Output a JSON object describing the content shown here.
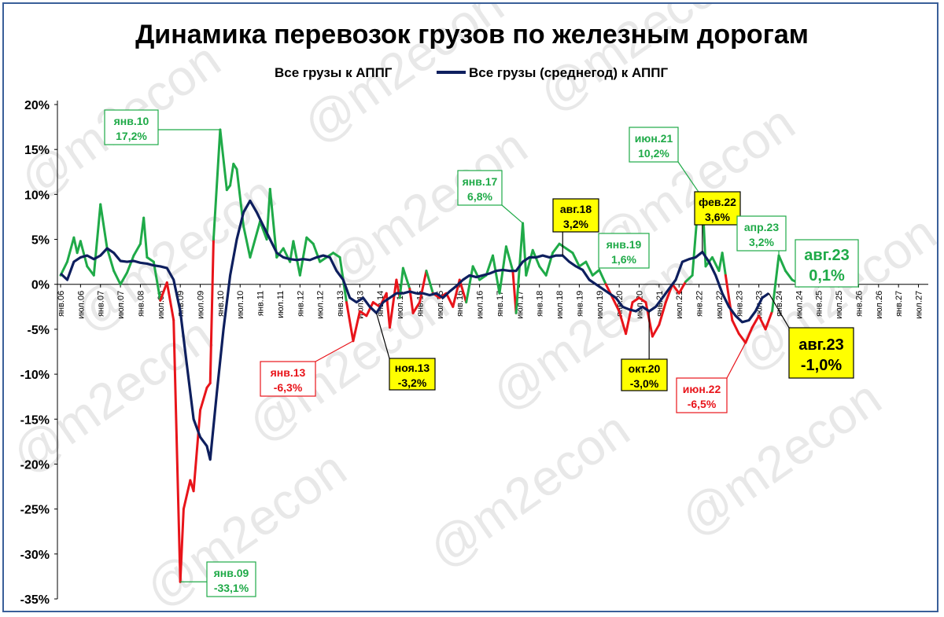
{
  "chart_data": {
    "type": "line",
    "title": "Динамика перевозок грузов по железным дорогам",
    "watermark": "@m2econ",
    "y_unit": "%",
    "ylim": [
      -35,
      20
    ],
    "yticks": [
      20,
      15,
      10,
      5,
      0,
      -5,
      -10,
      -15,
      -20,
      -25,
      -30,
      -35
    ],
    "ytick_labels": [
      "20%",
      "15%",
      "10%",
      "5%",
      "0%",
      "-5%",
      "-10%",
      "-15%",
      "-20%",
      "-25%",
      "-30%",
      "-35%"
    ],
    "x_start": "2006-01",
    "x_end": "2027-09",
    "xtick_labels": [
      "янв.06",
      "июл.06",
      "янв.07",
      "июл.07",
      "янв.08",
      "июл.08",
      "янв.09",
      "июл.09",
      "янв.10",
      "июл.10",
      "янв.11",
      "июл.11",
      "янв.12",
      "июл.12",
      "янв.13",
      "июл.13",
      "янв.14",
      "июл.14",
      "янв.15",
      "июл.15",
      "янв.16",
      "июл.16",
      "янв.17",
      "июл.17",
      "янв.18",
      "июл.18",
      "янв.19",
      "июл.19",
      "янв.20",
      "июл.20",
      "янв.21",
      "июл.21",
      "янв.22",
      "июл.22",
      "янв.23",
      "июл.23",
      "янв.24",
      "июл.24",
      "янв.25",
      "июл.25",
      "янв.26",
      "июл.26",
      "янв.27",
      "июл.27"
    ],
    "grid": false,
    "legend_position": "top-center",
    "colors": {
      "positive": "#1faa48",
      "negative": "#e8141a",
      "average": "#0e1f5e"
    },
    "series": [
      {
        "name": "Все грузы к АППГ",
        "style": "red-green",
        "points": [
          [
            "2006-01",
            1.0
          ],
          [
            "2006-03",
            2.5
          ],
          [
            "2006-05",
            5.2
          ],
          [
            "2006-06",
            3.5
          ],
          [
            "2006-07",
            4.8
          ],
          [
            "2006-09",
            2.0
          ],
          [
            "2006-11",
            1.0
          ],
          [
            "2007-01",
            8.9
          ],
          [
            "2007-03",
            4.0
          ],
          [
            "2007-05",
            1.5
          ],
          [
            "2007-07",
            0.0
          ],
          [
            "2007-09",
            1.3
          ],
          [
            "2007-11",
            3.2
          ],
          [
            "2008-01",
            4.5
          ],
          [
            "2008-02",
            7.4
          ],
          [
            "2008-03",
            3.0
          ],
          [
            "2008-05",
            2.5
          ],
          [
            "2008-07",
            -1.8
          ],
          [
            "2008-09",
            0.2
          ],
          [
            "2008-11",
            -4.0
          ],
          [
            "2009-01",
            -33.1
          ],
          [
            "2009-02",
            -25.0
          ],
          [
            "2009-04",
            -21.8
          ],
          [
            "2009-05",
            -23.0
          ],
          [
            "2009-07",
            -14.0
          ],
          [
            "2009-09",
            -11.5
          ],
          [
            "2009-10",
            -11.0
          ],
          [
            "2009-11",
            5.0
          ],
          [
            "2010-01",
            17.2
          ],
          [
            "2010-03",
            10.5
          ],
          [
            "2010-04",
            11.0
          ],
          [
            "2010-05",
            13.4
          ],
          [
            "2010-06",
            12.8
          ],
          [
            "2010-08",
            6.5
          ],
          [
            "2010-10",
            3.0
          ],
          [
            "2011-01",
            7.0
          ],
          [
            "2011-03",
            5.0
          ],
          [
            "2011-04",
            10.6
          ],
          [
            "2011-06",
            3.0
          ],
          [
            "2011-08",
            4.0
          ],
          [
            "2011-10",
            2.5
          ],
          [
            "2011-11",
            4.8
          ],
          [
            "2012-01",
            1.0
          ],
          [
            "2012-03",
            5.2
          ],
          [
            "2012-05",
            4.5
          ],
          [
            "2012-07",
            2.5
          ],
          [
            "2012-09",
            3.0
          ],
          [
            "2012-11",
            3.5
          ],
          [
            "2013-01",
            3.0
          ],
          [
            "2013-03",
            -2.0
          ],
          [
            "2013-05",
            -6.3
          ],
          [
            "2013-07",
            -3.0
          ],
          [
            "2013-09",
            -3.5
          ],
          [
            "2013-11",
            -2.0
          ],
          [
            "2014-01",
            -2.5
          ],
          [
            "2014-03",
            -1.0
          ],
          [
            "2014-04",
            -4.8
          ],
          [
            "2014-06",
            0.5
          ],
          [
            "2014-07",
            -1.5
          ],
          [
            "2014-08",
            1.8
          ],
          [
            "2014-10",
            -0.5
          ],
          [
            "2014-11",
            -3.2
          ],
          [
            "2015-01",
            -2.0
          ],
          [
            "2015-03",
            1.5
          ],
          [
            "2015-05",
            -1.0
          ],
          [
            "2015-07",
            -1.5
          ],
          [
            "2015-09",
            -1.0
          ],
          [
            "2015-11",
            -2.5
          ],
          [
            "2016-01",
            0.5
          ],
          [
            "2016-03",
            -2.0
          ],
          [
            "2016-05",
            2.0
          ],
          [
            "2016-07",
            0.5
          ],
          [
            "2016-09",
            1.0
          ],
          [
            "2016-11",
            3.2
          ],
          [
            "2017-01",
            -1.0
          ],
          [
            "2017-03",
            4.2
          ],
          [
            "2017-05",
            1.5
          ],
          [
            "2017-06",
            -3.2
          ],
          [
            "2017-08",
            6.8
          ],
          [
            "2017-09",
            1.0
          ],
          [
            "2017-11",
            3.8
          ],
          [
            "2018-01",
            2.0
          ],
          [
            "2018-03",
            1.0
          ],
          [
            "2018-05",
            3.5
          ],
          [
            "2018-07",
            4.5
          ],
          [
            "2018-09",
            4.0
          ],
          [
            "2018-11",
            3.5
          ],
          [
            "2019-01",
            2.0
          ],
          [
            "2019-03",
            2.5
          ],
          [
            "2019-05",
            1.0
          ],
          [
            "2019-07",
            1.6
          ],
          [
            "2019-09",
            0.0
          ],
          [
            "2019-11",
            -1.5
          ],
          [
            "2020-01",
            -3.0
          ],
          [
            "2020-03",
            -5.5
          ],
          [
            "2020-05",
            -2.0
          ],
          [
            "2020-07",
            -1.5
          ],
          [
            "2020-09",
            -2.0
          ],
          [
            "2020-11",
            -5.8
          ],
          [
            "2021-01",
            -4.5
          ],
          [
            "2021-03",
            -2.0
          ],
          [
            "2021-05",
            0.0
          ],
          [
            "2021-07",
            -1.0
          ],
          [
            "2021-09",
            0.3
          ],
          [
            "2021-11",
            1.0
          ],
          [
            "2022-01",
            10.2
          ],
          [
            "2022-02",
            10.0
          ],
          [
            "2022-03",
            2.0
          ],
          [
            "2022-05",
            3.0
          ],
          [
            "2022-07",
            1.5
          ],
          [
            "2022-08",
            3.5
          ],
          [
            "2022-09",
            1.0
          ],
          [
            "2022-11",
            -4.0
          ],
          [
            "2023-01",
            -5.5
          ],
          [
            "2023-03",
            -6.5
          ],
          [
            "2023-05",
            -4.8
          ],
          [
            "2023-07",
            -3.5
          ],
          [
            "2023-09",
            -5.0
          ],
          [
            "2023-11",
            -3.0
          ],
          [
            "2024-01",
            3.2
          ],
          [
            "2024-03",
            1.5
          ],
          [
            "2024-05",
            0.5
          ],
          [
            "2024-07",
            0.1
          ]
        ]
      },
      {
        "name": "Все грузы (среднегод) к АППГ",
        "style": "navy",
        "points": [
          [
            "2006-01",
            1.2
          ],
          [
            "2006-03",
            0.5
          ],
          [
            "2006-05",
            2.5
          ],
          [
            "2006-07",
            3.0
          ],
          [
            "2006-09",
            3.2
          ],
          [
            "2006-11",
            2.8
          ],
          [
            "2007-01",
            3.2
          ],
          [
            "2007-03",
            4.0
          ],
          [
            "2007-05",
            3.5
          ],
          [
            "2007-07",
            2.6
          ],
          [
            "2007-09",
            2.5
          ],
          [
            "2007-11",
            2.6
          ],
          [
            "2008-01",
            2.4
          ],
          [
            "2008-03",
            2.3
          ],
          [
            "2008-05",
            2.1
          ],
          [
            "2008-07",
            2.0
          ],
          [
            "2008-09",
            1.8
          ],
          [
            "2008-11",
            0.5
          ],
          [
            "2009-01",
            -3.0
          ],
          [
            "2009-03",
            -9.0
          ],
          [
            "2009-05",
            -15.0
          ],
          [
            "2009-07",
            -17.0
          ],
          [
            "2009-09",
            -18.0
          ],
          [
            "2009-10",
            -19.5
          ],
          [
            "2009-12",
            -12.0
          ],
          [
            "2010-02",
            -5.0
          ],
          [
            "2010-04",
            1.0
          ],
          [
            "2010-06",
            5.0
          ],
          [
            "2010-08",
            8.0
          ],
          [
            "2010-10",
            9.3
          ],
          [
            "2010-12",
            8.0
          ],
          [
            "2011-02",
            6.5
          ],
          [
            "2011-04",
            5.0
          ],
          [
            "2011-06",
            3.5
          ],
          [
            "2011-08",
            3.0
          ],
          [
            "2011-10",
            2.8
          ],
          [
            "2011-12",
            2.7
          ],
          [
            "2012-02",
            2.8
          ],
          [
            "2012-04",
            2.7
          ],
          [
            "2012-06",
            3.0
          ],
          [
            "2012-08",
            3.2
          ],
          [
            "2012-10",
            3.0
          ],
          [
            "2012-12",
            1.5
          ],
          [
            "2013-02",
            0.5
          ],
          [
            "2013-04",
            -1.5
          ],
          [
            "2013-06",
            -2.0
          ],
          [
            "2013-08",
            -1.5
          ],
          [
            "2013-10",
            -2.5
          ],
          [
            "2013-12",
            -3.2
          ],
          [
            "2014-02",
            -2.0
          ],
          [
            "2014-04",
            -1.5
          ],
          [
            "2014-06",
            -1.0
          ],
          [
            "2014-08",
            -1.0
          ],
          [
            "2014-10",
            -0.8
          ],
          [
            "2014-12",
            -1.0
          ],
          [
            "2015-02",
            -1.0
          ],
          [
            "2015-04",
            -1.2
          ],
          [
            "2015-06",
            -1.0
          ],
          [
            "2015-08",
            -1.5
          ],
          [
            "2015-10",
            -0.8
          ],
          [
            "2015-12",
            -0.2
          ],
          [
            "2016-02",
            0.5
          ],
          [
            "2016-04",
            1.0
          ],
          [
            "2016-06",
            0.8
          ],
          [
            "2016-08",
            1.0
          ],
          [
            "2016-10",
            1.2
          ],
          [
            "2016-12",
            1.5
          ],
          [
            "2017-02",
            1.6
          ],
          [
            "2017-04",
            1.5
          ],
          [
            "2017-06",
            1.5
          ],
          [
            "2017-08",
            2.5
          ],
          [
            "2017-10",
            3.0
          ],
          [
            "2017-12",
            3.0
          ],
          [
            "2018-02",
            3.2
          ],
          [
            "2018-04",
            3.0
          ],
          [
            "2018-06",
            3.2
          ],
          [
            "2018-08",
            3.2
          ],
          [
            "2018-10",
            2.5
          ],
          [
            "2018-12",
            2.0
          ],
          [
            "2019-02",
            1.6
          ],
          [
            "2019-04",
            0.5
          ],
          [
            "2019-06",
            0.0
          ],
          [
            "2019-08",
            -0.5
          ],
          [
            "2019-10",
            -1.0
          ],
          [
            "2019-12",
            -1.5
          ],
          [
            "2020-02",
            -2.5
          ],
          [
            "2020-04",
            -2.8
          ],
          [
            "2020-06",
            -3.0
          ],
          [
            "2020-08",
            -2.5
          ],
          [
            "2020-10",
            -3.0
          ],
          [
            "2020-12",
            -2.5
          ],
          [
            "2021-02",
            -1.5
          ],
          [
            "2021-04",
            -0.5
          ],
          [
            "2021-06",
            0.5
          ],
          [
            "2021-08",
            2.5
          ],
          [
            "2021-10",
            2.8
          ],
          [
            "2021-12",
            3.0
          ],
          [
            "2022-02",
            3.6
          ],
          [
            "2022-04",
            2.5
          ],
          [
            "2022-06",
            1.0
          ],
          [
            "2022-08",
            -1.0
          ],
          [
            "2022-10",
            -2.5
          ],
          [
            "2022-12",
            -3.5
          ],
          [
            "2023-02",
            -4.2
          ],
          [
            "2023-04",
            -4.0
          ],
          [
            "2023-06",
            -3.0
          ],
          [
            "2023-08",
            -1.5
          ],
          [
            "2023-10",
            -1.0
          ]
        ]
      }
    ],
    "annotations": [
      {
        "label": "янв.10",
        "value": "17,2%",
        "color": "green",
        "boxed": false,
        "x": "2010-01",
        "y": 17.2
      },
      {
        "label": "янв.09",
        "value": "-33,1%",
        "color": "green",
        "boxed": false,
        "x": "2009-01",
        "y": -33.1
      },
      {
        "label": "янв.13",
        "value": "-6,3%",
        "color": "red",
        "boxed": false,
        "x": "2013-05",
        "y": -6.3
      },
      {
        "label": "ноя.13",
        "value": "-3,2%",
        "color": "yellow",
        "boxed": true,
        "x": "2013-12",
        "y": -3.2
      },
      {
        "label": "янв.17",
        "value": "6,8%",
        "color": "green",
        "boxed": false,
        "x": "2017-08",
        "y": 6.8
      },
      {
        "label": "авг.18",
        "value": "3,2%",
        "color": "yellow",
        "boxed": true,
        "x": "2018-08",
        "y": 3.2
      },
      {
        "label": "янв.19",
        "value": "1,6%",
        "color": "green",
        "boxed": false,
        "x": "2019-07",
        "y": 1.6
      },
      {
        "label": "окт.20",
        "value": "-3,0%",
        "color": "yellow",
        "boxed": true,
        "x": "2020-10",
        "y": -3.0
      },
      {
        "label": "июн.21",
        "value": "10,2%",
        "color": "green",
        "boxed": false,
        "x": "2022-01",
        "y": 10.2
      },
      {
        "label": "фев.22",
        "value": "3,6%",
        "color": "yellow",
        "boxed": true,
        "x": "2022-02",
        "y": 3.6
      },
      {
        "label": "июн.22",
        "value": "-6,5%",
        "color": "red",
        "boxed": false,
        "x": "2023-03",
        "y": -6.5
      },
      {
        "label": "апр.23",
        "value": "3,2%",
        "color": "green",
        "boxed": false,
        "x": "2024-01",
        "y": 3.2
      },
      {
        "label": "авг.23",
        "value": "0,1%",
        "color": "green-large",
        "boxed": false,
        "x": "2024-07",
        "y": 0.1
      },
      {
        "label": "авг.23",
        "value": "-1,0%",
        "color": "yellow-large",
        "boxed": true,
        "x": "2023-10",
        "y": -1.0
      }
    ]
  }
}
